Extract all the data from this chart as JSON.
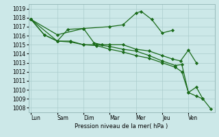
{
  "background_color": "#cce8e8",
  "grid_color": "#aacccc",
  "line_color": "#1a6b1a",
  "x_labels": [
    "Lun",
    "Sam",
    "Dim",
    "Mar",
    "Mer",
    "Jeu",
    "Ven"
  ],
  "ylabel": "Pression niveau de la mer( hPa )",
  "ylim": [
    1007.5,
    1019.5
  ],
  "yticks": [
    1008,
    1009,
    1010,
    1011,
    1012,
    1013,
    1014,
    1015,
    1016,
    1017,
    1018,
    1019
  ],
  "series1x": [
    0,
    1,
    2,
    3,
    3.5,
    4,
    4.2,
    4.6,
    5,
    5.4
  ],
  "series1y": [
    1017.8,
    1016.1,
    1016.8,
    1017.0,
    1017.2,
    1018.5,
    1018.7,
    1017.8,
    1016.3,
    1016.6
  ],
  "series2x": [
    0,
    1,
    1.4,
    2,
    2.4,
    2.7,
    3,
    3.5,
    4,
    4.5,
    5,
    5.4,
    5.7,
    6,
    6.3
  ],
  "series2y": [
    1017.8,
    1015.4,
    1016.7,
    1016.8,
    1015.2,
    1015.0,
    1015.0,
    1015.0,
    1014.5,
    1014.3,
    1013.8,
    1013.4,
    1013.2,
    1014.4,
    1013.0
  ],
  "series3x": [
    0,
    0.5,
    1,
    1.5,
    2,
    2.5,
    3,
    3.5,
    4,
    4.5,
    5,
    5.5,
    5.75,
    6,
    6.3,
    6.55
  ],
  "series3y": [
    1017.8,
    1016.1,
    1015.4,
    1015.4,
    1015.0,
    1015.0,
    1014.8,
    1014.5,
    1014.3,
    1013.8,
    1013.2,
    1012.7,
    1012.8,
    1009.7,
    1010.3,
    1009.0
  ],
  "series4x": [
    0,
    0.5,
    1,
    1.5,
    2,
    2.5,
    3,
    3.5,
    4,
    4.5,
    5,
    5.5,
    5.75,
    6,
    6.3,
    6.55,
    6.85
  ],
  "series4y": [
    1017.8,
    1016.1,
    1015.4,
    1015.3,
    1015.0,
    1014.9,
    1014.5,
    1014.2,
    1013.8,
    1013.5,
    1013.0,
    1012.5,
    1012.0,
    1009.7,
    1009.3,
    1009.0,
    1007.9
  ]
}
